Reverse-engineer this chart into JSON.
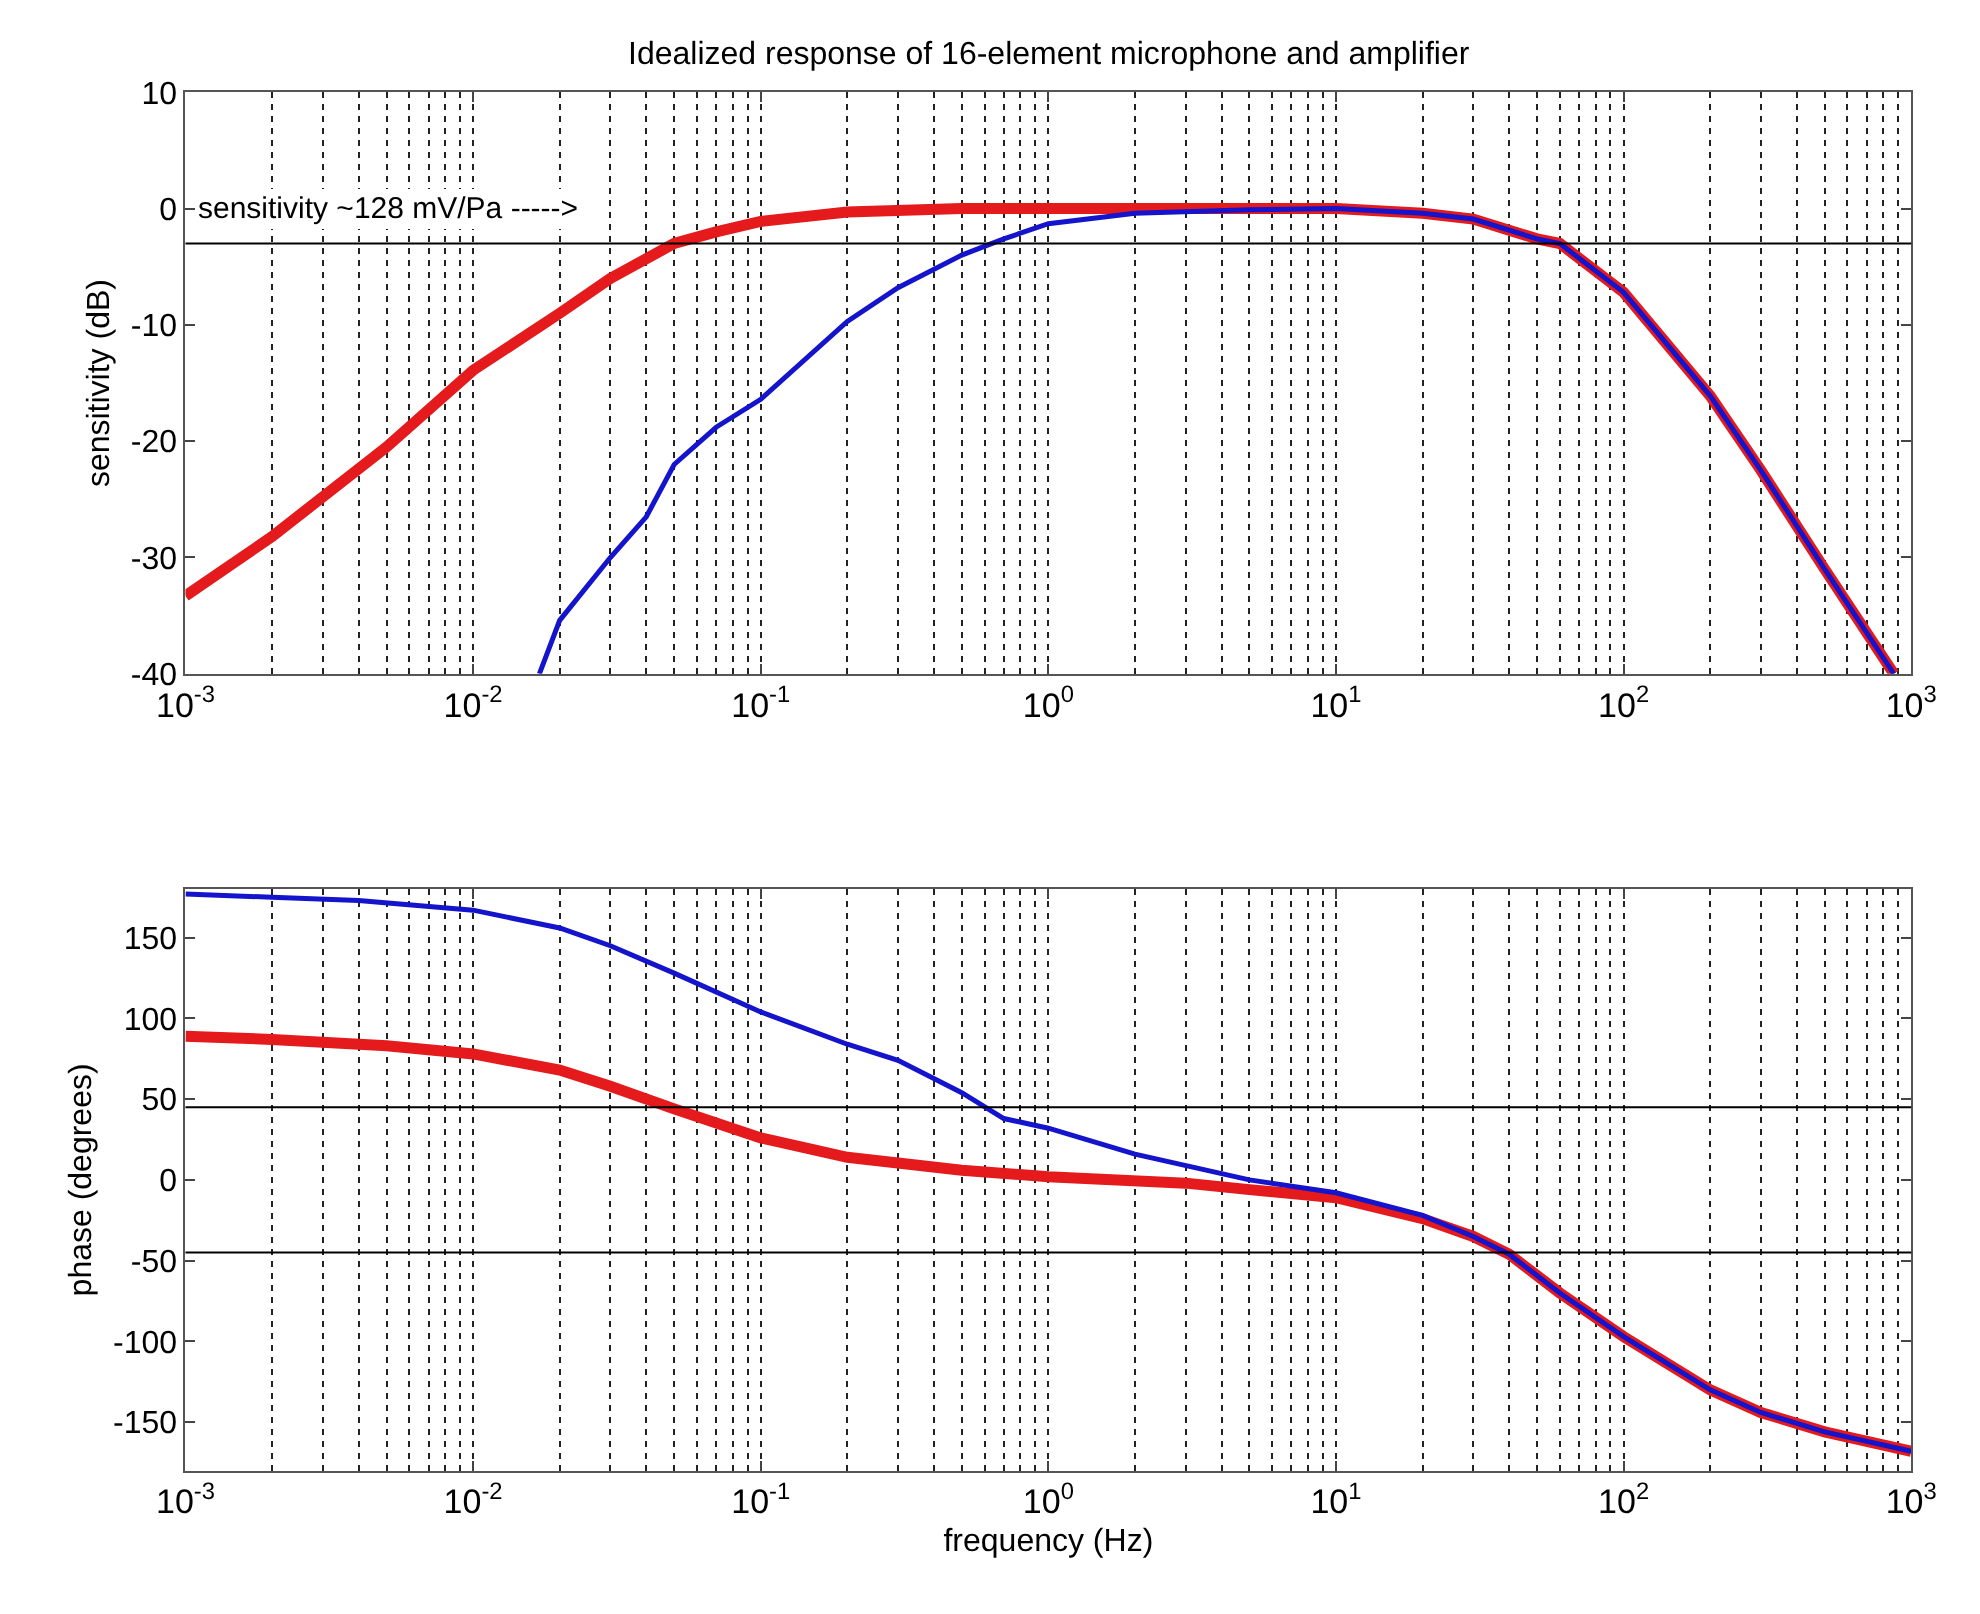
{
  "chart_data": [
    {
      "type": "line",
      "title": "Idealized response of 16-element microphone and amplifier",
      "ylabel": "sensitivity (dB)",
      "xlim": [
        0.001,
        1000
      ],
      "ylim": [
        -40,
        10
      ],
      "log": "x",
      "grid": "x",
      "xticks": [
        {
          "value": 0.001,
          "label": "10$^{-3}$"
        },
        {
          "value": 0.01,
          "label": "10$^{-2}$"
        },
        {
          "value": 0.1,
          "label": "10$^{-1}$"
        },
        {
          "value": 1,
          "label": "10$^{0}$"
        },
        {
          "value": 10,
          "label": "10$^{1}$"
        },
        {
          "value": 100,
          "label": "10$^{2}$"
        },
        {
          "value": 1000,
          "label": "10$^{3}$"
        }
      ],
      "yticks": [
        -40,
        -30,
        -20,
        -10,
        0,
        10
      ],
      "ref_lines": [
        {
          "axis": "y",
          "value": -3,
          "color": "#000000"
        }
      ],
      "annotations": [
        "sensitivity ~128 mV/Pa ----->"
      ],
      "series": [
        {
          "color": "#e41a1c",
          "x": [
            0.001,
            0.002,
            0.005,
            0.01,
            0.02,
            0.03,
            0.05,
            0.07,
            0.1,
            0.2,
            0.5,
            1,
            2,
            5,
            10,
            20,
            30,
            50,
            60,
            100,
            200,
            300,
            500,
            870
          ],
          "values": [
            -33.3,
            -28.2,
            -20.5,
            -13.9,
            -9,
            -6,
            -3,
            -2,
            -1.1,
            -0.3,
            0,
            0,
            0,
            0,
            0,
            -0.4,
            -0.9,
            -2.6,
            -3,
            -7.2,
            -16.1,
            -22.5,
            -31,
            -40
          ]
        },
        {
          "color": "#1414cc",
          "x": [
            0.017,
            0.02,
            0.03,
            0.04,
            0.05,
            0.07,
            0.1,
            0.2,
            0.3,
            0.5,
            0.7,
            1,
            2,
            5,
            10,
            20,
            30,
            50,
            60,
            100,
            200,
            300,
            500,
            870
          ],
          "values": [
            -40,
            -35.4,
            -30,
            -26.5,
            -22,
            -18.8,
            -16.4,
            -9.7,
            -6.8,
            -4,
            -2.6,
            -1.3,
            -0.4,
            -0.1,
            0,
            -0.4,
            -0.9,
            -2.6,
            -3,
            -7.2,
            -16.1,
            -22.5,
            -31,
            -40
          ]
        }
      ]
    },
    {
      "type": "line",
      "xlabel": "frequency (Hz)",
      "ylabel": "phase (degrees)",
      "xlim": [
        0.001,
        1000
      ],
      "ylim": [
        -180,
        180
      ],
      "log": "x",
      "grid": "x",
      "xticks": [
        {
          "value": 0.001,
          "label": "10$^{-3}$"
        },
        {
          "value": 0.01,
          "label": "10$^{-2}$"
        },
        {
          "value": 0.1,
          "label": "10$^{-1}$"
        },
        {
          "value": 1,
          "label": "10$^{0}$"
        },
        {
          "value": 10,
          "label": "10$^{1}$"
        },
        {
          "value": 100,
          "label": "10$^{2}$"
        },
        {
          "value": 1000,
          "label": "10$^{3}$"
        }
      ],
      "yticks": [
        -150,
        -100,
        -50,
        0,
        50,
        100,
        150
      ],
      "ref_lines": [
        {
          "axis": "y",
          "value": 45,
          "color": "#000000"
        },
        {
          "axis": "y",
          "value": -45,
          "color": "#000000"
        }
      ],
      "series": [
        {
          "color": "#e41a1c",
          "x": [
            0.001,
            0.002,
            0.005,
            0.01,
            0.02,
            0.03,
            0.05,
            0.1,
            0.2,
            0.5,
            1,
            3,
            5,
            10,
            20,
            30,
            40,
            60,
            100,
            200,
            300,
            500,
            1000
          ],
          "values": [
            89,
            87,
            83,
            78,
            68,
            58,
            44,
            26,
            14,
            6,
            2,
            -2,
            -6,
            -11,
            -24,
            -35,
            -46,
            -70,
            -97,
            -130,
            -144,
            -156,
            -168
          ]
        },
        {
          "color": "#1414cc",
          "x": [
            0.001,
            0.002,
            0.004,
            0.01,
            0.02,
            0.03,
            0.05,
            0.1,
            0.2,
            0.3,
            0.5,
            0.7,
            1,
            2,
            5,
            10,
            20,
            30,
            40,
            60,
            100,
            200,
            300,
            500,
            1000
          ],
          "values": [
            177,
            175,
            173,
            167,
            156,
            145,
            128,
            104,
            84,
            74,
            54,
            38,
            32,
            16,
            0,
            -8,
            -22,
            -35,
            -46,
            -70,
            -97,
            -130,
            -144,
            -156,
            -168
          ]
        }
      ]
    }
  ]
}
